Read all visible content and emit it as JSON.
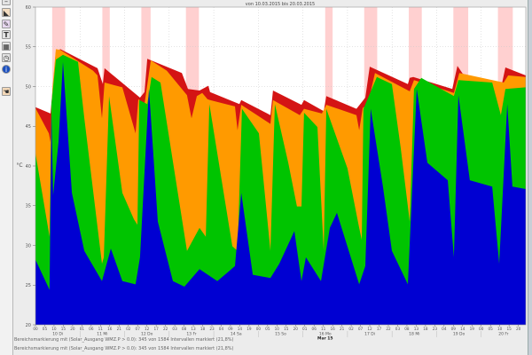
{
  "toolbar": {
    "icons": [
      "collapse-icon",
      "area-chart-icon",
      "palette-icon",
      "text-icon",
      "grid-icon",
      "clock-icon",
      "info-icon",
      "hand-icon"
    ]
  },
  "footer": {
    "line1": "Bereichsmarkierung mit (Solar_Ausgang WMZ.P > 0.0): 345 von 1584 Intervallen markiert (21,8%)",
    "line2": "Bereichsmarkierung mit (Solar_Ausgang WMZ.P > 0.0): 345 von 1584 Intervallen markiert (21,8%)"
  },
  "colors": {
    "red": "#d41414",
    "orange": "#ff9a00",
    "green": "#00c400",
    "blue": "#0000d2",
    "mark": "#ffd0d0"
  },
  "chart_data": {
    "type": "area",
    "title": "von 10.03.2015 bis 20.03.2015",
    "xlabel": "",
    "ylabel": "°C",
    "x_unit": "hours since 10.03.2015 00:00",
    "xlim": [
      0,
      264
    ],
    "ylim": [
      20,
      60
    ],
    "yticks": [
      "60",
      "55",
      "50",
      "45",
      "40",
      "35",
      "30",
      "25",
      "20"
    ],
    "ytick_values": [
      60,
      55,
      50,
      45,
      40,
      35,
      30,
      25,
      20
    ],
    "grid": true,
    "hour_tick_step": 5,
    "hour_ticks": [
      "00",
      "05",
      "10",
      "15",
      "20",
      "01",
      "06",
      "11",
      "16",
      "21",
      "02",
      "07",
      "12",
      "17",
      "22",
      "03",
      "08",
      "13",
      "18",
      "23",
      "04",
      "09",
      "14",
      "19",
      "00",
      "05",
      "10",
      "15",
      "20",
      "01",
      "06",
      "11",
      "16",
      "21",
      "02",
      "07",
      "12",
      "17",
      "22",
      "03",
      "08",
      "13",
      "18",
      "23",
      "04",
      "09",
      "14",
      "19",
      "00",
      "05",
      "10",
      "15",
      "20"
    ],
    "day_labels": [
      "10 Di",
      "11 Mi",
      "12 Do",
      "13 Fr",
      "14 Sa",
      "15 So",
      "16 Mo",
      "17 Di",
      "18 Mi",
      "19 Do",
      "20 Fr"
    ],
    "month_label": "Mar 15",
    "month_label_day_index": 6,
    "marked_ranges": [
      [
        9,
        16
      ],
      [
        36,
        40
      ],
      [
        57,
        62
      ],
      [
        81,
        88
      ],
      [
        156,
        160
      ],
      [
        177,
        184
      ],
      [
        201,
        208
      ],
      [
        225,
        233
      ],
      [
        249,
        257
      ]
    ],
    "series": [
      {
        "name": "red",
        "color_key": "red",
        "points": [
          [
            0,
            47.4
          ],
          [
            8.1,
            46.6
          ],
          [
            11,
            54.4
          ],
          [
            13.4,
            54.7
          ],
          [
            33.4,
            52.3
          ],
          [
            36.3,
            50.3
          ],
          [
            37.2,
            52.3
          ],
          [
            56.3,
            48.6
          ],
          [
            58.7,
            49.3
          ],
          [
            60.2,
            53.5
          ],
          [
            78.8,
            51.7
          ],
          [
            82.1,
            49.7
          ],
          [
            88.3,
            49.5
          ],
          [
            93.1,
            50.1
          ],
          [
            94,
            49.3
          ],
          [
            109.8,
            47.8
          ],
          [
            110.8,
            48.3
          ],
          [
            126.5,
            46.4
          ],
          [
            127.9,
            49.5
          ],
          [
            143.2,
            47.7
          ],
          [
            144.6,
            48.3
          ],
          [
            155.2,
            46.9
          ],
          [
            156.6,
            48.8
          ],
          [
            172.8,
            47.2
          ],
          [
            177.6,
            48.6
          ],
          [
            180,
            52.5
          ],
          [
            200.5,
            50.3
          ],
          [
            201.5,
            51.1
          ],
          [
            203.4,
            51.2
          ],
          [
            224.4,
            49.7
          ],
          [
            227.2,
            52.6
          ],
          [
            230.1,
            51.6
          ],
          [
            251.1,
            50.3
          ],
          [
            253,
            52.4
          ],
          [
            264,
            51.4
          ]
        ]
      },
      {
        "name": "orange",
        "color_key": "orange",
        "points": [
          [
            0,
            47.3
          ],
          [
            7.2,
            44.1
          ],
          [
            8.1,
            43
          ],
          [
            9.1,
            49.7
          ],
          [
            11,
            54.7
          ],
          [
            13.4,
            54.6
          ],
          [
            31,
            52
          ],
          [
            33.4,
            51.4
          ],
          [
            35.8,
            46
          ],
          [
            37.2,
            50.5
          ],
          [
            46.8,
            49.9
          ],
          [
            53.9,
            44.1
          ],
          [
            55.4,
            48.4
          ],
          [
            58.7,
            47.8
          ],
          [
            62.1,
            53.3
          ],
          [
            70.7,
            52
          ],
          [
            81.6,
            48.9
          ],
          [
            84,
            46
          ],
          [
            86.9,
            48.8
          ],
          [
            89.8,
            49.2
          ],
          [
            92.6,
            48.4
          ],
          [
            94,
            48.3
          ],
          [
            107.4,
            47.5
          ],
          [
            108.8,
            44.5
          ],
          [
            110.8,
            47.7
          ],
          [
            126.5,
            45.3
          ],
          [
            127.9,
            48.3
          ],
          [
            142.3,
            46.4
          ],
          [
            144.6,
            47.2
          ],
          [
            154.2,
            46.6
          ],
          [
            156.6,
            47.7
          ],
          [
            172.8,
            46.4
          ],
          [
            174.3,
            44.5
          ],
          [
            176.2,
            47.3
          ],
          [
            179,
            47.8
          ],
          [
            182.8,
            51.7
          ],
          [
            201.5,
            49.4
          ],
          [
            203.8,
            50.8
          ],
          [
            225.3,
            49.2
          ],
          [
            228.2,
            51.7
          ],
          [
            252.1,
            50.5
          ],
          [
            254.5,
            51.4
          ],
          [
            264,
            51.2
          ]
        ]
      },
      {
        "name": "green",
        "color_key": "green",
        "points": [
          [
            0,
            41.6
          ],
          [
            7.6,
            31.1
          ],
          [
            8.6,
            47.8
          ],
          [
            11,
            53.4
          ],
          [
            14.8,
            54
          ],
          [
            22.9,
            53.1
          ],
          [
            26.3,
            46
          ],
          [
            35.8,
            27.7
          ],
          [
            36.8,
            28.5
          ],
          [
            39.6,
            48.8
          ],
          [
            46.8,
            36.6
          ],
          [
            53,
            33.3
          ],
          [
            54.9,
            32.6
          ],
          [
            55.9,
            48.3
          ],
          [
            60.2,
            47.8
          ],
          [
            62.5,
            51.2
          ],
          [
            67.3,
            50.5
          ],
          [
            75.4,
            38.5
          ],
          [
            81.6,
            29.3
          ],
          [
            88.3,
            32.2
          ],
          [
            91.7,
            31.1
          ],
          [
            93.6,
            47.8
          ],
          [
            106,
            29.9
          ],
          [
            108.8,
            29.3
          ],
          [
            111.2,
            47.2
          ],
          [
            120.3,
            44.1
          ],
          [
            126.5,
            29.3
          ],
          [
            128.9,
            47.8
          ],
          [
            136.1,
            40.4
          ],
          [
            140.8,
            34.9
          ],
          [
            143.2,
            34.9
          ],
          [
            144.6,
            46.7
          ],
          [
            151.8,
            44.9
          ],
          [
            155.2,
            29.3
          ],
          [
            156.6,
            47.2
          ],
          [
            168,
            39.7
          ],
          [
            174.3,
            32.2
          ],
          [
            175.7,
            30.7
          ],
          [
            176.6,
            47.2
          ],
          [
            183.8,
            51.2
          ],
          [
            191.9,
            50.3
          ],
          [
            196.7,
            42.2
          ],
          [
            201.5,
            33
          ],
          [
            203.8,
            49.7
          ],
          [
            207.7,
            51.1
          ],
          [
            225.3,
            48.8
          ],
          [
            227.7,
            50.8
          ],
          [
            245.9,
            50.5
          ],
          [
            250.6,
            46.4
          ],
          [
            253,
            49.7
          ],
          [
            264,
            49.9
          ]
        ]
      },
      {
        "name": "blue",
        "color_key": "blue",
        "points": [
          [
            0,
            28.2
          ],
          [
            7.6,
            24.4
          ],
          [
            8.6,
            46.7
          ],
          [
            9.5,
            36.3
          ],
          [
            12.4,
            43
          ],
          [
            14.8,
            53.1
          ],
          [
            19.6,
            36.6
          ],
          [
            26.3,
            29.3
          ],
          [
            35.8,
            25.5
          ],
          [
            40.6,
            29.6
          ],
          [
            46.8,
            25.5
          ],
          [
            53.9,
            25.1
          ],
          [
            56.3,
            28.5
          ],
          [
            61.1,
            49.7
          ],
          [
            65.9,
            33
          ],
          [
            74,
            25.5
          ],
          [
            80.2,
            24.8
          ],
          [
            88.3,
            27
          ],
          [
            97.9,
            25.5
          ],
          [
            107.4,
            27.4
          ],
          [
            110.8,
            36.6
          ],
          [
            117,
            26.3
          ],
          [
            126.5,
            25.9
          ],
          [
            131.3,
            27.7
          ],
          [
            139.4,
            31.8
          ],
          [
            143.2,
            25.5
          ],
          [
            145.6,
            28.5
          ],
          [
            153.7,
            25.5
          ],
          [
            158.5,
            32.2
          ],
          [
            162.3,
            34.1
          ],
          [
            174.3,
            25.1
          ],
          [
            177.6,
            27.4
          ],
          [
            180.5,
            47.2
          ],
          [
            187.1,
            37.4
          ],
          [
            191.9,
            29.3
          ],
          [
            200.5,
            25.1
          ],
          [
            205.3,
            49.7
          ],
          [
            211,
            40.4
          ],
          [
            222,
            38.2
          ],
          [
            225.3,
            28.5
          ],
          [
            227.7,
            48.9
          ],
          [
            233.9,
            38.2
          ],
          [
            245.9,
            37.4
          ],
          [
            249.7,
            27.7
          ],
          [
            254,
            47.8
          ],
          [
            256.8,
            37.4
          ],
          [
            264,
            37.1
          ]
        ]
      }
    ]
  }
}
